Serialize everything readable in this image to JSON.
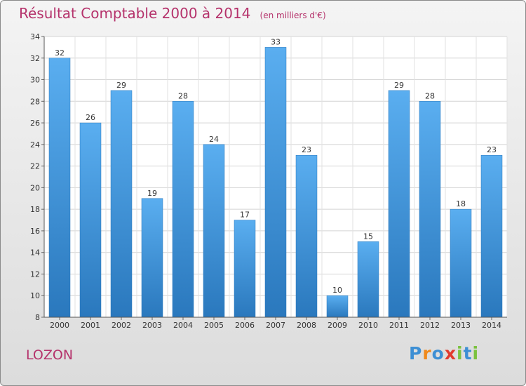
{
  "title": "Résultat Comptable 2000 à 2014",
  "unit_note": "(en milliers d'€)",
  "commune": "LOZON",
  "logo": {
    "letters": [
      "P",
      "r",
      "o",
      "x",
      "i",
      "t",
      "i"
    ],
    "colors": [
      "#3d8fd4",
      "#f08a1c",
      "#3d8fd4",
      "#e23a2e",
      "#7bc23f",
      "#3d8fd4",
      "#7bc23f"
    ]
  },
  "colors": {
    "bar_light": "#5aaef0",
    "bar_dark": "#2a78bd",
    "accent": "#b5326b"
  },
  "chart_data": {
    "type": "bar",
    "categories": [
      "2000",
      "2001",
      "2002",
      "2003",
      "2004",
      "2005",
      "2006",
      "2007",
      "2008",
      "2009",
      "2010",
      "2011",
      "2012",
      "2013",
      "2014"
    ],
    "values": [
      32,
      26,
      29,
      19,
      28,
      24,
      17,
      33,
      23,
      10,
      15,
      29,
      28,
      18,
      23
    ],
    "ylim": [
      8,
      34
    ],
    "yticks": [
      8,
      10,
      12,
      14,
      16,
      18,
      20,
      22,
      24,
      26,
      28,
      30,
      32,
      34
    ],
    "grid": true,
    "legend": "none"
  }
}
